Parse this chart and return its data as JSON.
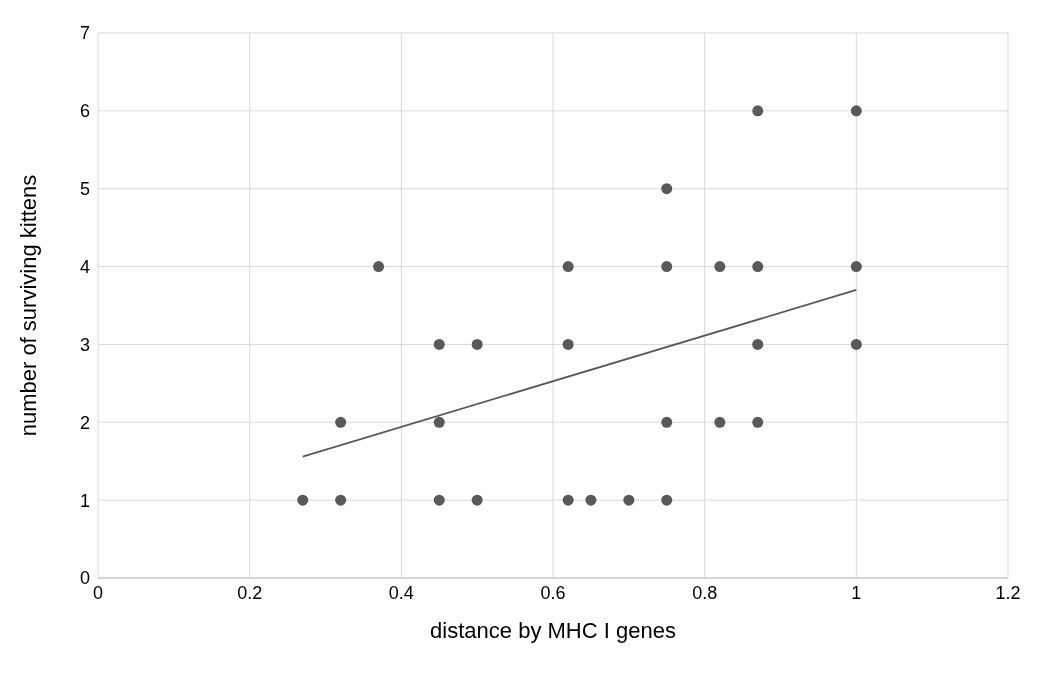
{
  "chart_data": {
    "type": "scatter",
    "xlabel": "distance by MHC I genes",
    "ylabel": "number of surviving kittens",
    "xlim": [
      0,
      1.2
    ],
    "xticks": [
      0,
      0.2,
      0.4,
      0.6,
      0.8,
      1,
      1.2
    ],
    "ylim": [
      0,
      7
    ],
    "yticks": [
      0,
      1,
      2,
      3,
      4,
      5,
      6,
      7
    ],
    "grid": true,
    "series": [
      {
        "type": "scatter",
        "marker": "circle",
        "color": "#595959",
        "x": [
          0.27,
          0.32,
          0.32,
          0.37,
          0.45,
          0.45,
          0.45,
          0.5,
          0.5,
          0.62,
          0.62,
          0.62,
          0.65,
          0.7,
          0.75,
          0.75,
          0.75,
          0.75,
          0.82,
          0.82,
          0.87,
          0.87,
          0.87,
          0.87,
          1,
          1,
          1
        ],
        "values": [
          1,
          1,
          2,
          4,
          3,
          2,
          1,
          3,
          1,
          4,
          3,
          1,
          1,
          1,
          5,
          4,
          2,
          1,
          4,
          2,
          6,
          4,
          3,
          2,
          6,
          4,
          3
        ]
      },
      {
        "type": "line",
        "marker": "none",
        "color": "#595959",
        "x": [
          0.27,
          1
        ],
        "values": [
          1.56,
          3.7
        ]
      }
    ]
  }
}
